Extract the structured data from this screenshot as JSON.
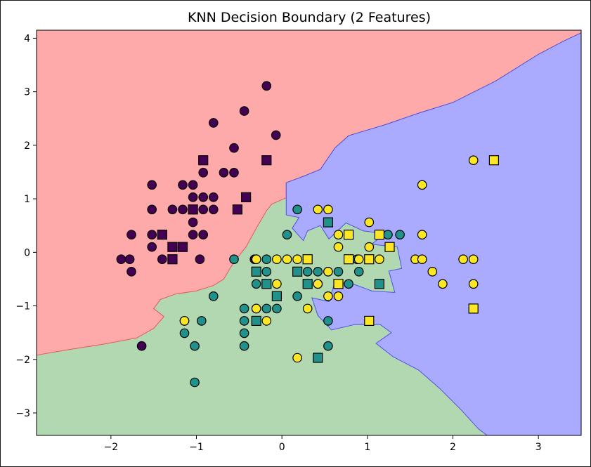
{
  "chart_data": {
    "type": "scatter",
    "title": "KNN Decision Boundary (2 Features)",
    "xlabel": "",
    "ylabel": "",
    "xlim": [
      -2.87,
      3.5
    ],
    "ylim": [
      -3.42,
      4.15
    ],
    "x_ticks": [
      -2,
      -1,
      0,
      1,
      2,
      3
    ],
    "x_tick_labels": [
      "−2",
      "−1",
      "0",
      "1",
      "2",
      "3"
    ],
    "y_ticks": [
      -3,
      -2,
      -1,
      0,
      1,
      2,
      3,
      4
    ],
    "y_tick_labels": [
      "−3",
      "−2",
      "−1",
      "0",
      "1",
      "2",
      "3",
      "4"
    ],
    "grid": false,
    "legend": "none",
    "region_colors": [
      "#ffaaaa",
      "#b2d8b2",
      "#aaaaff"
    ],
    "class_colors": [
      "#440154",
      "#21918c",
      "#fde725"
    ],
    "series": [
      {
        "marker": "circle",
        "class": 0,
        "points": [
          [
            -1.88,
            -0.13
          ],
          [
            -1.78,
            -0.13
          ],
          [
            -1.76,
            -0.36
          ],
          [
            -1.76,
            0.33
          ],
          [
            -1.52,
            1.26
          ],
          [
            -1.52,
            0.8
          ],
          [
            -1.52,
            0.33
          ],
          [
            -1.52,
            0.1
          ],
          [
            -1.4,
            -0.13
          ],
          [
            -1.28,
            0.8
          ],
          [
            -1.28,
            -0.13
          ],
          [
            -1.16,
            1.26
          ],
          [
            -1.16,
            0.8
          ],
          [
            -1.16,
            0.1
          ],
          [
            -1.04,
            1.26
          ],
          [
            -1.04,
            1.03
          ],
          [
            -1.04,
            0.56
          ],
          [
            -1.04,
            0.33
          ],
          [
            -0.96,
            -0.13
          ],
          [
            -0.92,
            1.72
          ],
          [
            -0.92,
            1.49
          ],
          [
            -0.92,
            1.03
          ],
          [
            -0.92,
            0.8
          ],
          [
            -0.92,
            0.33
          ],
          [
            -0.8,
            2.42
          ],
          [
            -0.8,
            1.03
          ],
          [
            -0.8,
            0.8
          ],
          [
            -0.68,
            1.49
          ],
          [
            -0.56,
            1.95
          ],
          [
            -0.56,
            1.49
          ],
          [
            -0.44,
            2.64
          ],
          [
            -0.32,
            -0.13
          ],
          [
            -0.18,
            3.11
          ],
          [
            -0.07,
            2.19
          ],
          [
            -1.64,
            -1.75
          ]
        ]
      },
      {
        "marker": "square",
        "class": 0,
        "points": [
          [
            -1.4,
            0.33
          ],
          [
            -1.28,
            0.1
          ],
          [
            -1.16,
            0.1
          ],
          [
            -1.28,
            -0.13
          ],
          [
            -1.04,
            0.8
          ],
          [
            -0.92,
            1.72
          ],
          [
            -0.52,
            0.8
          ],
          [
            -0.42,
            1.03
          ],
          [
            -0.18,
            1.72
          ]
        ]
      },
      {
        "marker": "circle",
        "class": 1,
        "points": [
          [
            -1.14,
            -1.28
          ],
          [
            -1.14,
            -1.51
          ],
          [
            -1.02,
            -1.75
          ],
          [
            -1.02,
            -2.43
          ],
          [
            -0.94,
            -1.28
          ],
          [
            -0.8,
            -0.82
          ],
          [
            -0.56,
            -0.13
          ],
          [
            -0.44,
            -1.05
          ],
          [
            -0.44,
            -1.28
          ],
          [
            -0.44,
            -1.51
          ],
          [
            -0.44,
            -1.75
          ],
          [
            -0.3,
            -1.05
          ],
          [
            -0.3,
            -0.59
          ],
          [
            -0.3,
            -0.13
          ],
          [
            -0.18,
            -1.05
          ],
          [
            -0.18,
            -0.36
          ],
          [
            -0.18,
            -0.13
          ],
          [
            -0.06,
            -1.05
          ],
          [
            -0.06,
            -0.82
          ],
          [
            0.06,
            0.33
          ],
          [
            0.18,
            -0.82
          ],
          [
            0.18,
            0.8
          ],
          [
            0.3,
            -0.36
          ],
          [
            0.42,
            -0.36
          ],
          [
            0.42,
            -0.59
          ],
          [
            0.54,
            -0.36
          ],
          [
            0.54,
            -1.28
          ],
          [
            0.54,
            -1.75
          ],
          [
            0.66,
            -0.36
          ],
          [
            0.78,
            -0.59
          ],
          [
            0.88,
            -0.13
          ],
          [
            0.9,
            -0.36
          ],
          [
            1.14,
            0.33
          ],
          [
            1.24,
            0.33
          ],
          [
            1.38,
            0.33
          ]
        ]
      },
      {
        "marker": "square",
        "class": 1,
        "points": [
          [
            -0.3,
            -0.36
          ],
          [
            -0.3,
            -1.28
          ],
          [
            -0.18,
            -0.59
          ],
          [
            -0.06,
            -0.82
          ],
          [
            0.18,
            -0.36
          ],
          [
            0.3,
            -0.59
          ],
          [
            0.42,
            -1.97
          ],
          [
            0.54,
            0.56
          ],
          [
            1.14,
            -0.59
          ]
        ]
      },
      {
        "marker": "circle",
        "class": 2,
        "points": [
          [
            -1.14,
            -1.28
          ],
          [
            -0.3,
            -0.13
          ],
          [
            -0.3,
            -1.05
          ],
          [
            -0.18,
            -1.28
          ],
          [
            -0.06,
            -0.13
          ],
          [
            -0.06,
            -0.59
          ],
          [
            0.06,
            -0.13
          ],
          [
            0.18,
            -1.97
          ],
          [
            0.18,
            -0.13
          ],
          [
            0.3,
            -1.05
          ],
          [
            0.42,
            0.8
          ],
          [
            0.42,
            -0.59
          ],
          [
            0.54,
            0.8
          ],
          [
            0.54,
            -0.36
          ],
          [
            0.54,
            -0.82
          ],
          [
            0.66,
            0.33
          ],
          [
            0.66,
            0.1
          ],
          [
            0.66,
            -0.82
          ],
          [
            0.9,
            -0.13
          ],
          [
            1.02,
            0.56
          ],
          [
            1.02,
            0.1
          ],
          [
            1.02,
            -0.13
          ],
          [
            1.14,
            -0.13
          ],
          [
            1.56,
            -0.13
          ],
          [
            1.64,
            1.26
          ],
          [
            1.64,
            0.33
          ],
          [
            1.64,
            -0.13
          ],
          [
            1.76,
            -0.36
          ],
          [
            1.88,
            -0.59
          ],
          [
            2.12,
            -0.13
          ],
          [
            2.24,
            1.72
          ],
          [
            2.24,
            -0.13
          ],
          [
            2.24,
            -0.59
          ]
        ]
      },
      {
        "marker": "square",
        "class": 2,
        "points": [
          [
            0.3,
            -0.13
          ],
          [
            0.66,
            -0.59
          ],
          [
            0.78,
            0.33
          ],
          [
            0.78,
            -0.13
          ],
          [
            1.02,
            -0.13
          ],
          [
            1.02,
            -1.28
          ],
          [
            1.14,
            0.33
          ],
          [
            1.26,
            0.1
          ],
          [
            2.24,
            -1.05
          ],
          [
            2.48,
            1.72
          ]
        ]
      }
    ]
  }
}
